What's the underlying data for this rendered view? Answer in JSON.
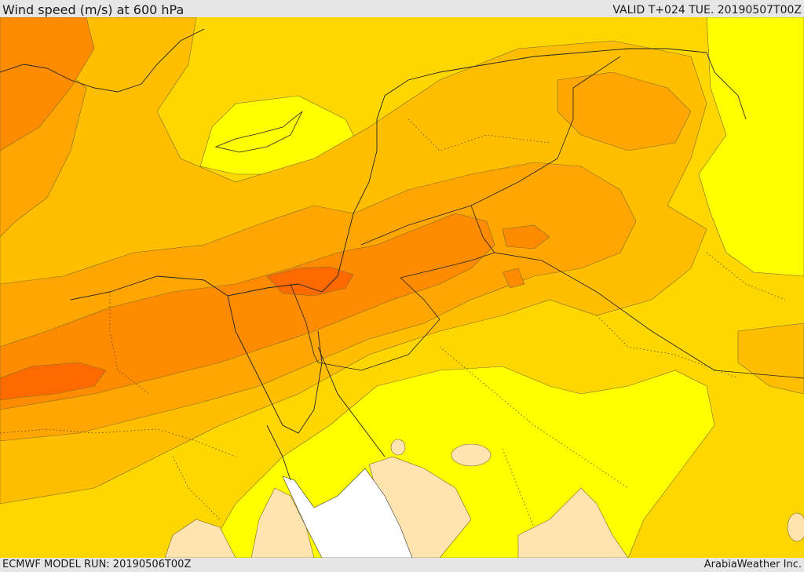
{
  "header": {
    "title": "Wind speed (m/s) at 600 hPa",
    "valid_time": "VALID T+024 TUE. 20190507T00Z"
  },
  "footer": {
    "model_run": "ECMWF MODEL RUN: 20190506T00Z",
    "credit": "ArabiaWeather Inc."
  },
  "map": {
    "variable": "wind speed",
    "units": "m/s",
    "level_hpa": 600,
    "colors": {
      "lightest": "#ffe4b0",
      "light": "#ffff00",
      "mid_low": "#ffd700",
      "mid": "#ffbf00",
      "mid_high": "#ffa600",
      "high": "#ff8c00",
      "highest": "#ff6a00",
      "sea_missing": "#ffffff"
    }
  }
}
